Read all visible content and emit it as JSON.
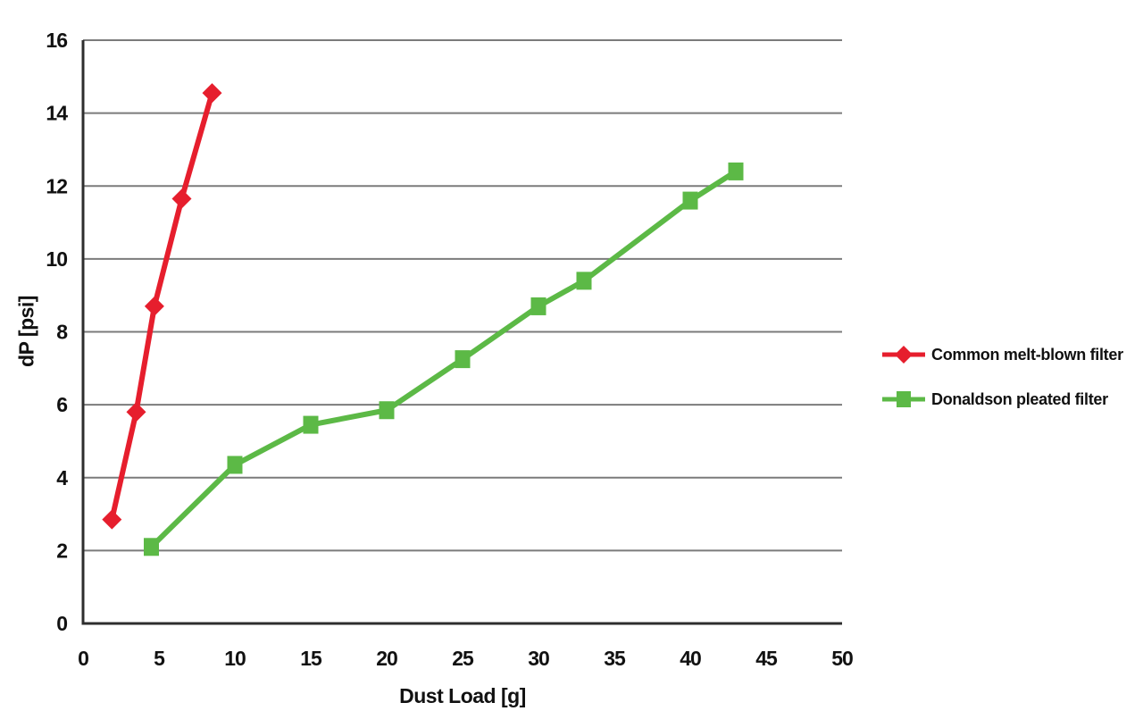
{
  "chart_data": {
    "type": "line",
    "title": "",
    "xlabel": "Dust Load [g]",
    "ylabel": "dP [psi]",
    "xlim": [
      0,
      50
    ],
    "ylim": [
      0,
      16
    ],
    "xticks": [
      0,
      5,
      10,
      15,
      20,
      25,
      30,
      35,
      40,
      45,
      50
    ],
    "yticks": [
      0,
      2,
      4,
      6,
      8,
      10,
      12,
      14,
      16
    ],
    "grid": "horizontal-only",
    "legend_position": "right-center",
    "colors": {
      "grid": "#7b7b7b",
      "axis": "#2e2e2e",
      "text": "#111111",
      "background": "#ffffff"
    },
    "series": [
      {
        "name": "Common melt-blown filter",
        "color": "#e61e2d",
        "marker": "diamond",
        "points": [
          [
            1.9,
            2.85
          ],
          [
            3.5,
            5.8
          ],
          [
            4.7,
            8.7
          ],
          [
            6.5,
            11.65
          ],
          [
            8.5,
            14.55
          ]
        ]
      },
      {
        "name": "Donaldson pleated filter",
        "color": "#5cb946",
        "marker": "square",
        "points": [
          [
            4.5,
            2.1
          ],
          [
            10,
            4.35
          ],
          [
            15,
            5.45
          ],
          [
            20,
            5.85
          ],
          [
            25,
            7.25
          ],
          [
            30,
            8.7
          ],
          [
            33,
            9.4
          ],
          [
            40,
            11.6
          ],
          [
            43,
            12.4
          ]
        ]
      }
    ]
  }
}
